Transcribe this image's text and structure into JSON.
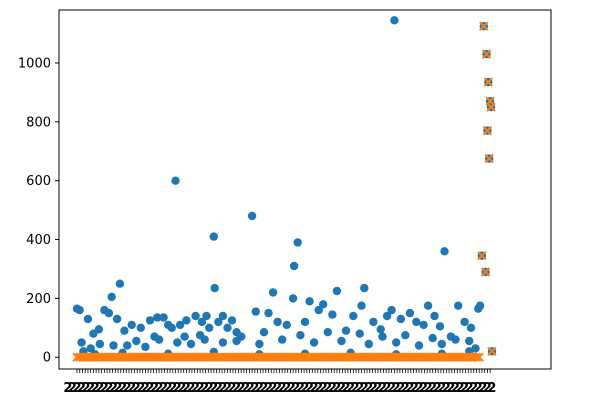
{
  "chart_data": {
    "type": "scatter",
    "title": "",
    "xlabel": "",
    "ylabel": "",
    "ylim": [
      -40,
      1180
    ],
    "yticks": [
      0,
      200,
      400,
      600,
      800,
      1000
    ],
    "ytick_labels": [
      "0",
      "200",
      "400",
      "600",
      "800",
      "1000"
    ],
    "xlim": [
      -12,
      500
    ],
    "x_tick_labels_note": "dense overlapping category labels, illegible",
    "x_tick_label_glyph": "2",
    "grid": false,
    "legend": "none",
    "series": [
      {
        "marker": "circle",
        "color": "#1f77b4",
        "points": [
          [
            0,
            165
          ],
          [
            3,
            160
          ],
          [
            7,
            20
          ],
          [
            12,
            130
          ],
          [
            18,
            80
          ],
          [
            24,
            95
          ],
          [
            30,
            160
          ],
          [
            35,
            150
          ],
          [
            38,
            205
          ],
          [
            44,
            130
          ],
          [
            47,
            250
          ],
          [
            52,
            90
          ],
          [
            60,
            110
          ],
          [
            70,
            100
          ],
          [
            80,
            125
          ],
          [
            88,
            135
          ],
          [
            95,
            135
          ],
          [
            100,
            110
          ],
          [
            104,
            100
          ],
          [
            108,
            600
          ],
          [
            113,
            110
          ],
          [
            120,
            125
          ],
          [
            130,
            140
          ],
          [
            137,
            120
          ],
          [
            142,
            140
          ],
          [
            145,
            100
          ],
          [
            150,
            410
          ],
          [
            151,
            235
          ],
          [
            155,
            120
          ],
          [
            160,
            140
          ],
          [
            165,
            100
          ],
          [
            170,
            125
          ],
          [
            180,
            70
          ],
          [
            192,
            480
          ],
          [
            196,
            155
          ],
          [
            210,
            150
          ],
          [
            215,
            220
          ],
          [
            220,
            120
          ],
          [
            230,
            110
          ],
          [
            237,
            200
          ],
          [
            238,
            310
          ],
          [
            242,
            390
          ],
          [
            250,
            120
          ],
          [
            255,
            190
          ],
          [
            265,
            160
          ],
          [
            270,
            180
          ],
          [
            280,
            145
          ],
          [
            285,
            225
          ],
          [
            295,
            90
          ],
          [
            303,
            140
          ],
          [
            312,
            175
          ],
          [
            315,
            235
          ],
          [
            325,
            120
          ],
          [
            333,
            95
          ],
          [
            340,
            140
          ],
          [
            345,
            160
          ],
          [
            348,
            1145
          ],
          [
            355,
            130
          ],
          [
            365,
            150
          ],
          [
            372,
            120
          ],
          [
            380,
            110
          ],
          [
            385,
            175
          ],
          [
            392,
            140
          ],
          [
            398,
            105
          ],
          [
            403,
            360
          ],
          [
            410,
            70
          ],
          [
            418,
            175
          ],
          [
            425,
            120
          ],
          [
            432,
            100
          ],
          [
            440,
            165
          ],
          [
            442,
            175
          ],
          [
            444,
            345
          ],
          [
            446,
            1125
          ],
          [
            448,
            290
          ],
          [
            449,
            1030
          ],
          [
            450,
            770
          ],
          [
            451,
            935
          ],
          [
            452,
            675
          ],
          [
            453,
            870
          ],
          [
            454,
            850
          ],
          [
            455,
            20
          ],
          [
            15,
            30
          ],
          [
            25,
            45
          ],
          [
            55,
            40
          ],
          [
            65,
            55
          ],
          [
            75,
            35
          ],
          [
            90,
            60
          ],
          [
            110,
            50
          ],
          [
            125,
            45
          ],
          [
            140,
            60
          ],
          [
            160,
            50
          ],
          [
            175,
            55
          ],
          [
            200,
            45
          ],
          [
            225,
            60
          ],
          [
            260,
            50
          ],
          [
            290,
            55
          ],
          [
            320,
            45
          ],
          [
            350,
            50
          ],
          [
            375,
            40
          ],
          [
            400,
            45
          ],
          [
            430,
            55
          ],
          [
            5,
            50
          ],
          [
            40,
            40
          ],
          [
            85,
            70
          ],
          [
            118,
            70
          ],
          [
            135,
            75
          ],
          [
            175,
            85
          ],
          [
            205,
            85
          ],
          [
            245,
            75
          ],
          [
            275,
            85
          ],
          [
            310,
            80
          ],
          [
            335,
            70
          ],
          [
            360,
            75
          ],
          [
            390,
            65
          ],
          [
            415,
            60
          ],
          [
            20,
            10
          ],
          [
            50,
            15
          ],
          [
            100,
            12
          ],
          [
            150,
            18
          ],
          [
            200,
            10
          ],
          [
            250,
            12
          ],
          [
            300,
            15
          ],
          [
            350,
            10
          ],
          [
            400,
            12
          ],
          [
            430,
            20
          ],
          [
            437,
            30
          ]
        ]
      },
      {
        "marker": "x",
        "color": "#ff7f0e",
        "points": [
          [
            446,
            1125
          ],
          [
            449,
            1030
          ],
          [
            451,
            935
          ],
          [
            453,
            870
          ],
          [
            454,
            850
          ],
          [
            450,
            770
          ],
          [
            452,
            675
          ],
          [
            444,
            345
          ],
          [
            448,
            290
          ],
          [
            455,
            20
          ]
        ],
        "baseline": {
          "value": 0,
          "x_from": 0,
          "x_to": 442
        }
      }
    ]
  }
}
